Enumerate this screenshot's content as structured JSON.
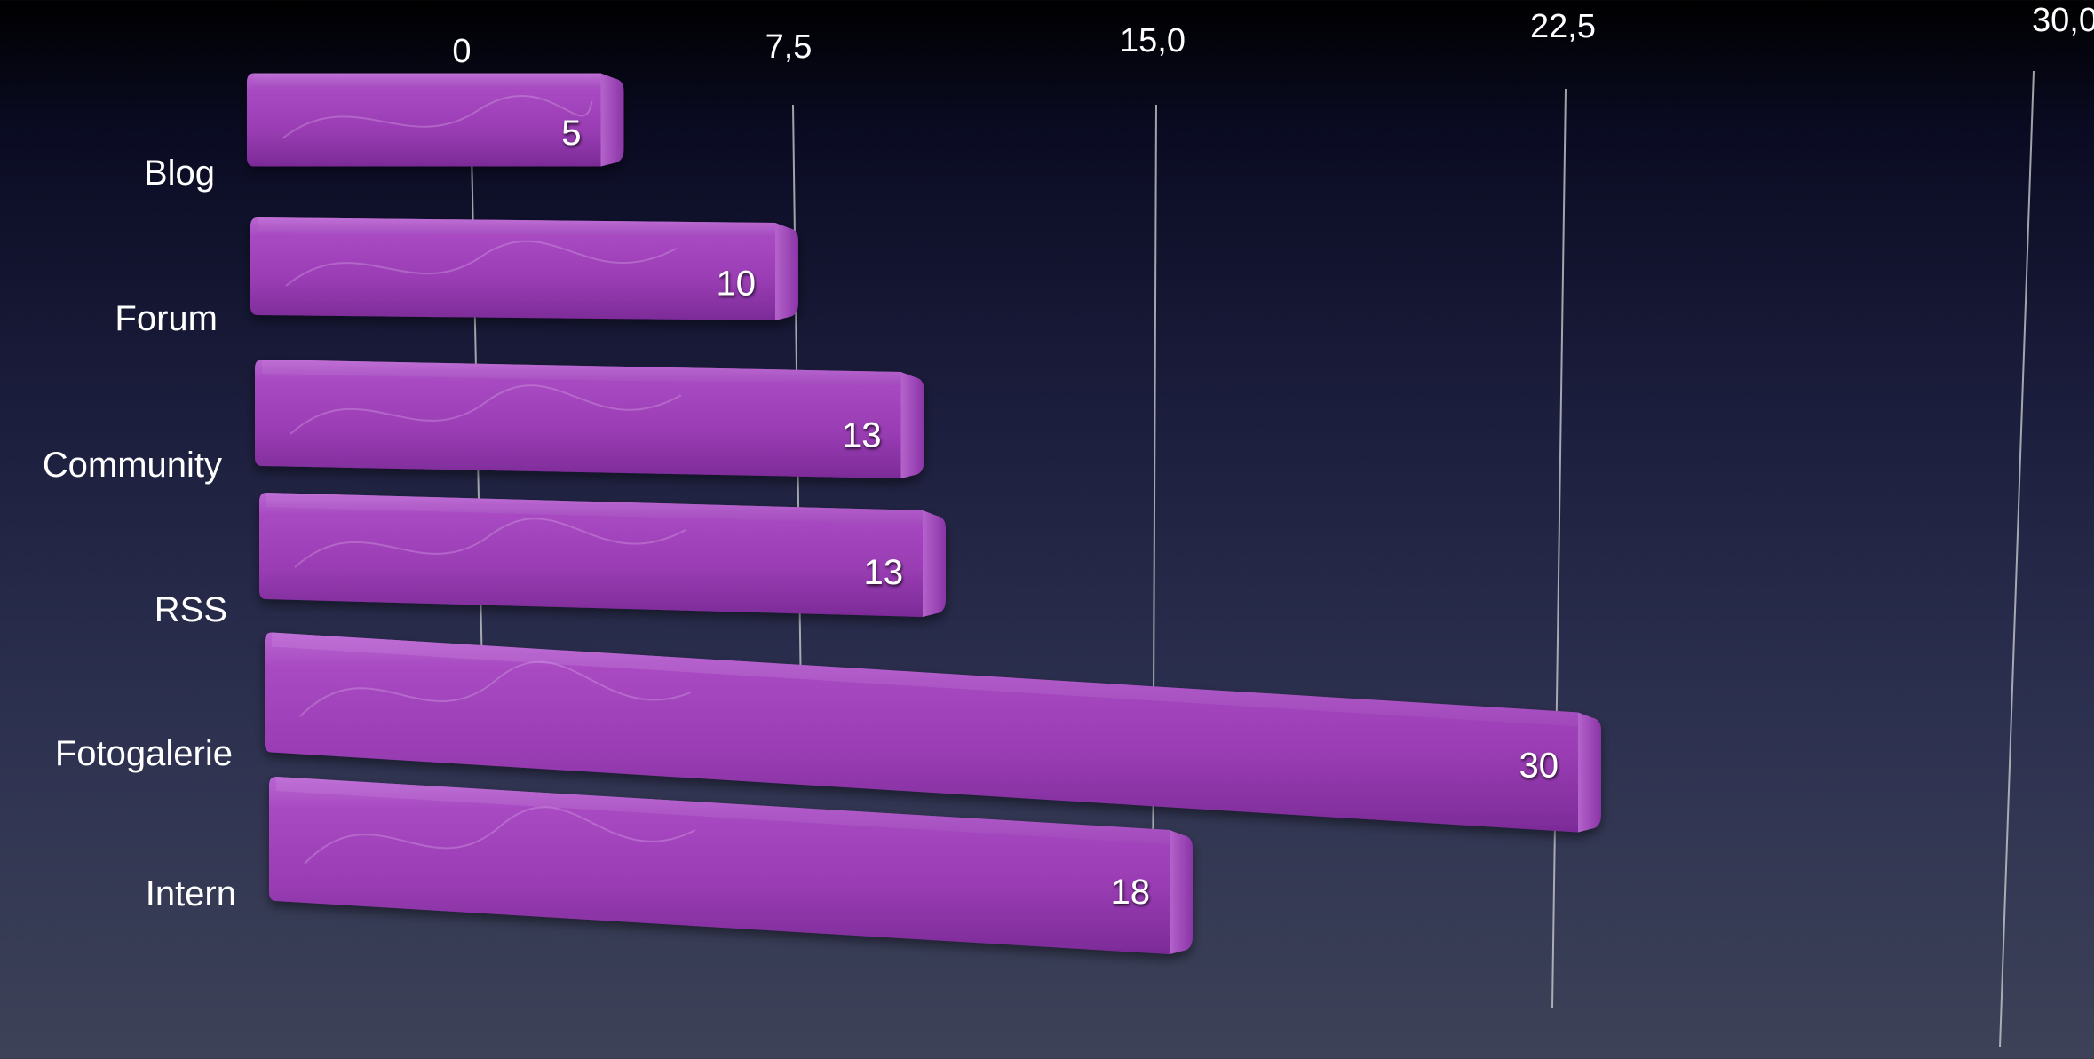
{
  "chart_data": {
    "type": "bar",
    "orientation": "horizontal",
    "categories": [
      "Blog",
      "Forum",
      "Community",
      "RSS",
      "Fotogalerie",
      "Intern"
    ],
    "values": [
      5,
      10,
      13,
      13,
      30,
      18
    ],
    "value_labels": [
      "5",
      "10",
      "13",
      "13",
      "30",
      "18"
    ],
    "xlim": [
      0,
      30
    ],
    "ticks": [
      0,
      7.5,
      15,
      22.5,
      30
    ],
    "tick_labels": [
      "0",
      "7,5",
      "15,0",
      "22,5",
      "30,0"
    ],
    "axis_position": "top",
    "grid": true,
    "bar_color": "#9a3fb4",
    "bar_highlight": "#b65ccc",
    "bar_shadow": "#6a2486",
    "text_color": "#ffffff",
    "gridline_color": "#c8c8cc"
  }
}
